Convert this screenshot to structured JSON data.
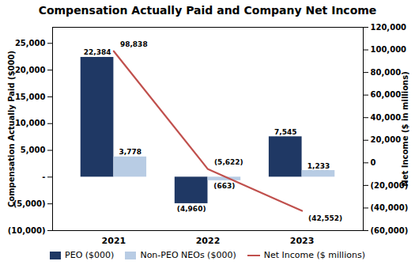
{
  "chart_data": {
    "type": "bar",
    "title": "Compensation Actually Paid and Company Net Income",
    "categories": [
      "2021",
      "2022",
      "2023"
    ],
    "series": [
      {
        "name": "PEO ($000)",
        "color": "#1F3864",
        "values": [
          22384,
          -4960,
          7545
        ],
        "value_labels": [
          "22,384",
          "(4,960)",
          "7,545"
        ]
      },
      {
        "name": "Non-PEO NEOs ($000)",
        "color": "#B8CCE4",
        "values": [
          3778,
          -663,
          1233
        ],
        "value_labels": [
          "3,778",
          "(663)",
          "1,233"
        ]
      },
      {
        "name": "Net Income ($ millions)",
        "type": "line",
        "axis": "y2",
        "color": "#C0504D",
        "values": [
          98838,
          -5622,
          -42552
        ],
        "value_labels": [
          "98,838",
          "(5,622)",
          "(42,552)"
        ]
      }
    ],
    "ylabel": "Compensation Actually Paid ($000)",
    "y2label": "Net Income ($ in millions)",
    "ylim": [
      -10000,
      28000
    ],
    "yticks": [
      {
        "value": -10000,
        "label": "(10,000)"
      },
      {
        "value": -5000,
        "label": "(5,000)"
      },
      {
        "value": 0,
        "label": "-"
      },
      {
        "value": 5000,
        "label": "5,000"
      },
      {
        "value": 10000,
        "label": "10,000"
      },
      {
        "value": 15000,
        "label": "15,000"
      },
      {
        "value": 20000,
        "label": "20,000"
      },
      {
        "value": 25000,
        "label": "25,000"
      }
    ],
    "y2lim": [
      -60000,
      120000
    ],
    "y2ticks": [
      {
        "value": -60000,
        "label": "(60,000)"
      },
      {
        "value": -40000,
        "label": "(40,000)"
      },
      {
        "value": -20000,
        "label": "(20,000)"
      },
      0,
      {
        "value": 20000,
        "label": "20,000"
      },
      {
        "value": 40000,
        "label": "40,000"
      },
      {
        "value": 60000,
        "label": "60,000"
      },
      {
        "value": 80000,
        "label": "80,000"
      },
      {
        "value": 100000,
        "label": "100,000"
      },
      {
        "value": 120000,
        "label": "120,000"
      }
    ],
    "data_labels": true,
    "legend": "bottom"
  }
}
